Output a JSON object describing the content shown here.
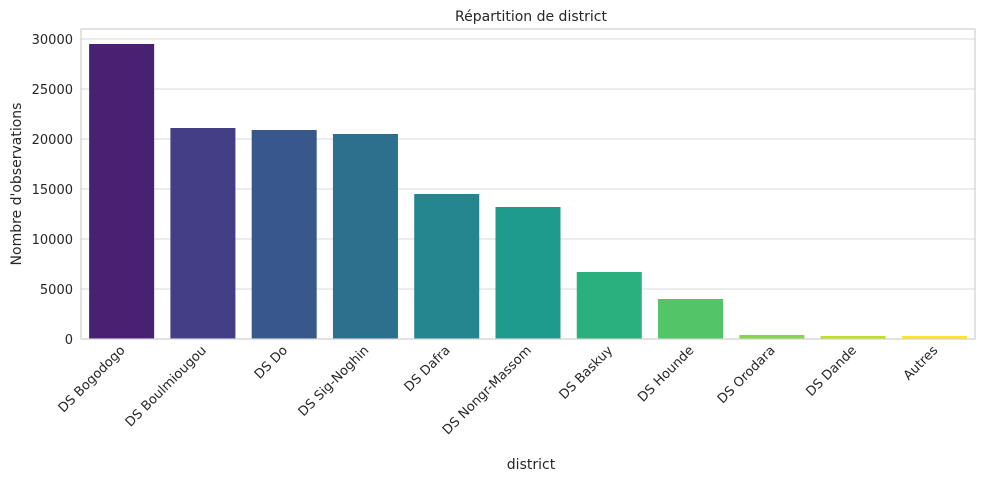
{
  "chart_data": {
    "type": "bar",
    "title": "Répartition de district",
    "xlabel": "district",
    "ylabel": "Nombre d'observations",
    "categories": [
      "DS Bogodogo",
      "DS Boulmiougou",
      "DS Do",
      "DS Sig-Noghin",
      "DS Dafra",
      "DS Nongr-Massom",
      "DS Baskuy",
      "DS Hounde",
      "DS Orodara",
      "DS Dande",
      "Autres"
    ],
    "values": [
      29500,
      21100,
      20900,
      20500,
      14500,
      13200,
      6700,
      4000,
      400,
      300,
      300
    ],
    "ylim": [
      0,
      31000
    ],
    "yticks": [
      0,
      5000,
      10000,
      15000,
      20000,
      25000,
      30000
    ],
    "grid": true,
    "colors": [
      "#482173",
      "#433e85",
      "#38588c",
      "#2d708e",
      "#25858e",
      "#1e9b8a",
      "#2ab07f",
      "#52c569",
      "#86d549",
      "#c2df23",
      "#fde725"
    ]
  }
}
